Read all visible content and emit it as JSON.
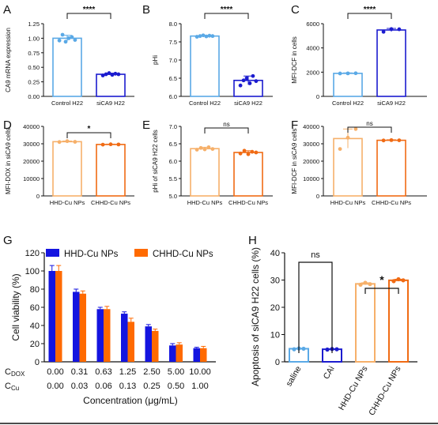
{
  "figure": {
    "colors": {
      "light_blue": "#5aa9e6",
      "dark_blue": "#1c1ccf",
      "light_orange": "#f6b06a",
      "dark_orange": "#f06b14",
      "blue_solid": "#1414e0",
      "orange_solid": "#ff6a00",
      "axis": "#111111"
    },
    "bottom_rule": true
  },
  "chart_data": [
    {
      "panel": "A",
      "type": "bar",
      "categories": [
        "Control H22",
        "siCA9  H22"
      ],
      "values": [
        1.0,
        0.38
      ],
      "points": [
        [
          0.96,
          1.06,
          0.94,
          1.0,
          1.02,
          0.97
        ],
        [
          0.36,
          0.38,
          0.4,
          0.37,
          0.39,
          0.38
        ]
      ],
      "errors": [
        0.05,
        0.02
      ],
      "ylabel": "CA9 mRNA expression",
      "ylim": [
        0,
        1.25
      ],
      "yticks": [
        "0.00",
        "0.25",
        "0.50",
        "0.75",
        "1.00",
        "1.25"
      ],
      "significance": "****",
      "colors": [
        "#5aa9e6",
        "#1c1ccf"
      ]
    },
    {
      "panel": "B",
      "type": "bar",
      "categories": [
        "Control H22",
        "siCA9  H22"
      ],
      "values": [
        7.66,
        6.44
      ],
      "points": [
        [
          7.64,
          7.66,
          7.68,
          7.65,
          7.67,
          7.66
        ],
        [
          6.3,
          6.44,
          6.5,
          6.36,
          6.56,
          6.42
        ]
      ],
      "errors": [
        0.02,
        0.12
      ],
      "ylabel": "pHi",
      "ylim": [
        6.0,
        8.0
      ],
      "yticks": [
        "6.0",
        "6.5",
        "7.0",
        "7.5",
        "8.0"
      ],
      "significance": "****",
      "colors": [
        "#5aa9e6",
        "#1c1ccf"
      ]
    },
    {
      "panel": "C",
      "type": "bar",
      "categories": [
        "Control H22",
        "siCA9  H22"
      ],
      "values": [
        1900,
        5480
      ],
      "points": [
        [
          1890,
          1900,
          1910
        ],
        [
          5330,
          5560,
          5540
        ]
      ],
      "errors": [
        40,
        130
      ],
      "ylabel": "MFI-DCF in cells",
      "ylim": [
        0,
        6000
      ],
      "yticks": [
        "0",
        "2000",
        "4000",
        "6000"
      ],
      "significance": "****",
      "colors": [
        "#5aa9e6",
        "#1c1ccf"
      ]
    },
    {
      "panel": "D",
      "type": "bar",
      "categories": [
        "HHD-Cu NPs",
        "CHHD-Cu NPs"
      ],
      "values": [
        31200,
        29600
      ],
      "points": [
        [
          31000,
          31500,
          31100
        ],
        [
          29500,
          29700,
          29600
        ]
      ],
      "errors": [
        400,
        200
      ],
      "ylabel": "MFI-DOX in siCA9 cells",
      "ylim": [
        0,
        40000
      ],
      "yticks": [
        "0",
        "10000",
        "20000",
        "30000",
        "40000"
      ],
      "significance": "*",
      "colors": [
        "#f6b06a",
        "#f06b14"
      ]
    },
    {
      "panel": "E",
      "type": "bar",
      "categories": [
        "HHD-Cu NPs",
        "CHHD-Cu NPs"
      ],
      "values": [
        6.36,
        6.25
      ],
      "points": [
        [
          6.33,
          6.38,
          6.34,
          6.4,
          6.35
        ],
        [
          6.22,
          6.3,
          6.2,
          6.27,
          6.25
        ]
      ],
      "errors": [
        0.04,
        0.05
      ],
      "ylabel": "pHi of  siCA9 H22 cells",
      "ylim": [
        5.0,
        7.0
      ],
      "yticks": [
        "5.0",
        "5.5",
        "6.0",
        "6.5",
        "7.0"
      ],
      "significance": "ns",
      "colors": [
        "#f6b06a",
        "#f06b14"
      ]
    },
    {
      "panel": "F",
      "type": "bar",
      "categories": [
        "HHD-Cu NPs",
        "CHHD-Cu NPs"
      ],
      "values": [
        33000,
        32000
      ],
      "points": [
        [
          27000,
          33500,
          38500
        ],
        [
          31900,
          32100,
          32000
        ]
      ],
      "errors": [
        5500,
        300
      ],
      "ylabel": "MFI-DCF in siCA9 cells",
      "ylim": [
        0,
        40000
      ],
      "yticks": [
        "0",
        "10000",
        "20000",
        "30000",
        "40000"
      ],
      "significance": "ns",
      "colors": [
        "#f6b06a",
        "#f06b14"
      ]
    },
    {
      "panel": "G",
      "type": "bar",
      "categories": [
        "0.00",
        "0.31",
        "0.63",
        "1.25",
        "2.50",
        "5.00",
        "10.00"
      ],
      "cu_categories": [
        "0.00",
        "0.03",
        "0.06",
        "0.13",
        "0.25",
        "0.50",
        "1.00"
      ],
      "series": [
        {
          "name": "HHD-Cu NPs",
          "values": [
            100,
            77,
            58,
            53,
            39,
            18,
            15
          ],
          "errors": [
            6,
            3,
            2,
            2,
            2,
            2,
            1
          ]
        },
        {
          "name": "CHHD-Cu NPs",
          "values": [
            100,
            75,
            58,
            44,
            34,
            19,
            15
          ],
          "errors": [
            6,
            3,
            3,
            4,
            2,
            2,
            2
          ]
        }
      ],
      "row_label_dox": "C",
      "row_label_dox_sub": "DOX",
      "row_label_cu": "C",
      "row_label_cu_sub": "Cu",
      "xlabel": "Concentration (μg/mL)",
      "ylabel": "Cell viability (%)",
      "ylim": [
        0,
        120
      ],
      "yticks": [
        "0",
        "20",
        "40",
        "60",
        "80",
        "100",
        "120"
      ],
      "legend": "top",
      "colors": [
        "#1414e0",
        "#ff6a00"
      ]
    },
    {
      "panel": "H",
      "type": "bar",
      "categories": [
        "saline",
        "CAi",
        "HHD-Cu NPs",
        "CHHD-Cu NPs"
      ],
      "values": [
        4.8,
        4.6,
        28.6,
        29.9
      ],
      "points": [
        [
          4.6,
          4.9,
          4.8
        ],
        [
          4.5,
          4.7,
          4.6
        ],
        [
          28.3,
          29.0,
          28.5
        ],
        [
          29.6,
          30.3,
          29.9
        ]
      ],
      "errors": [
        0.2,
        0.2,
        0.4,
        0.4
      ],
      "ylabel": "Apoptosis of siCA9 H22 cells (%)",
      "ylim": [
        0,
        40
      ],
      "yticks": [
        "0",
        "10",
        "20",
        "30",
        "40"
      ],
      "significance_pairs": [
        {
          "pair": [
            0,
            1
          ],
          "label": "ns"
        },
        {
          "pair": [
            2,
            3
          ],
          "label": "*"
        }
      ],
      "colors": [
        "#5aa9e6",
        "#1c1ccf",
        "#f6b06a",
        "#f06b14"
      ]
    }
  ]
}
